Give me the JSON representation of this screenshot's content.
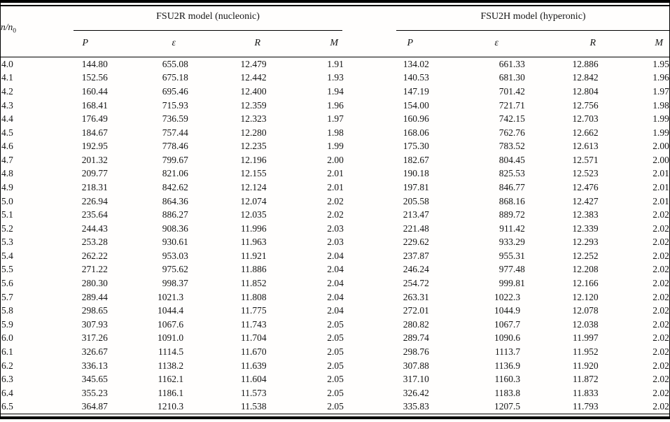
{
  "table": {
    "row_label_header": "n/n",
    "row_label_sub": "0",
    "groups": [
      {
        "title": "FSU2R model (nucleonic)",
        "columns": [
          "P",
          "ε",
          "R",
          "M"
        ]
      },
      {
        "title": "FSU2H model (hyperonic)",
        "columns": [
          "P",
          "ε",
          "R",
          "M"
        ]
      }
    ],
    "rows": [
      [
        "4.0",
        "144.80",
        "655.08",
        "12.479",
        "1.91",
        "134.02",
        "661.33",
        "12.886",
        "1.95"
      ],
      [
        "4.1",
        "152.56",
        "675.18",
        "12.442",
        "1.93",
        "140.53",
        "681.30",
        "12.842",
        "1.96"
      ],
      [
        "4.2",
        "160.44",
        "695.46",
        "12.400",
        "1.94",
        "147.19",
        "701.42",
        "12.804",
        "1.97"
      ],
      [
        "4.3",
        "168.41",
        "715.93",
        "12.359",
        "1.96",
        "154.00",
        "721.71",
        "12.756",
        "1.98"
      ],
      [
        "4.4",
        "176.49",
        "736.59",
        "12.323",
        "1.97",
        "160.96",
        "742.15",
        "12.703",
        "1.99"
      ],
      [
        "4.5",
        "184.67",
        "757.44",
        "12.280",
        "1.98",
        "168.06",
        "762.76",
        "12.662",
        "1.99"
      ],
      [
        "4.6",
        "192.95",
        "778.46",
        "12.235",
        "1.99",
        "175.30",
        "783.52",
        "12.613",
        "2.00"
      ],
      [
        "4.7",
        "201.32",
        "799.67",
        "12.196",
        "2.00",
        "182.67",
        "804.45",
        "12.571",
        "2.00"
      ],
      [
        "4.8",
        "209.77",
        "821.06",
        "12.155",
        "2.01",
        "190.18",
        "825.53",
        "12.523",
        "2.01"
      ],
      [
        "4.9",
        "218.31",
        "842.62",
        "12.124",
        "2.01",
        "197.81",
        "846.77",
        "12.476",
        "2.01"
      ],
      [
        "5.0",
        "226.94",
        "864.36",
        "12.074",
        "2.02",
        "205.58",
        "868.16",
        "12.427",
        "2.01"
      ],
      [
        "5.1",
        "235.64",
        "886.27",
        "12.035",
        "2.02",
        "213.47",
        "889.72",
        "12.383",
        "2.02"
      ],
      [
        "5.2",
        "244.43",
        "908.36",
        "11.996",
        "2.03",
        "221.48",
        "911.42",
        "12.339",
        "2.02"
      ],
      [
        "5.3",
        "253.28",
        "930.61",
        "11.963",
        "2.03",
        "229.62",
        "933.29",
        "12.293",
        "2.02"
      ],
      [
        "5.4",
        "262.22",
        "953.03",
        "11.921",
        "2.04",
        "237.87",
        "955.31",
        "12.252",
        "2.02"
      ],
      [
        "5.5",
        "271.22",
        "975.62",
        "11.886",
        "2.04",
        "246.24",
        "977.48",
        "12.208",
        "2.02"
      ],
      [
        "5.6",
        "280.30",
        "998.37",
        "11.852",
        "2.04",
        "254.72",
        "999.81",
        "12.166",
        "2.02"
      ],
      [
        "5.7",
        "289.44",
        "1021.3",
        "11.808",
        "2.04",
        "263.31",
        "1022.3",
        "12.120",
        "2.02"
      ],
      [
        "5.8",
        "298.65",
        "1044.4",
        "11.775",
        "2.04",
        "272.01",
        "1044.9",
        "12.078",
        "2.02"
      ],
      [
        "5.9",
        "307.93",
        "1067.6",
        "11.743",
        "2.05",
        "280.82",
        "1067.7",
        "12.038",
        "2.02"
      ],
      [
        "6.0",
        "317.26",
        "1091.0",
        "11.704",
        "2.05",
        "289.74",
        "1090.6",
        "11.997",
        "2.02"
      ],
      [
        "6.1",
        "326.67",
        "1114.5",
        "11.670",
        "2.05",
        "298.76",
        "1113.7",
        "11.952",
        "2.02"
      ],
      [
        "6.2",
        "336.13",
        "1138.2",
        "11.639",
        "2.05",
        "307.88",
        "1136.9",
        "11.920",
        "2.02"
      ],
      [
        "6.3",
        "345.65",
        "1162.1",
        "11.604",
        "2.05",
        "317.10",
        "1160.3",
        "11.872",
        "2.02"
      ],
      [
        "6.4",
        "355.23",
        "1186.1",
        "11.573",
        "2.05",
        "326.42",
        "1183.8",
        "11.833",
        "2.02"
      ],
      [
        "6.5",
        "364.87",
        "1210.3",
        "11.538",
        "2.05",
        "335.83",
        "1207.5",
        "11.793",
        "2.02"
      ]
    ]
  }
}
